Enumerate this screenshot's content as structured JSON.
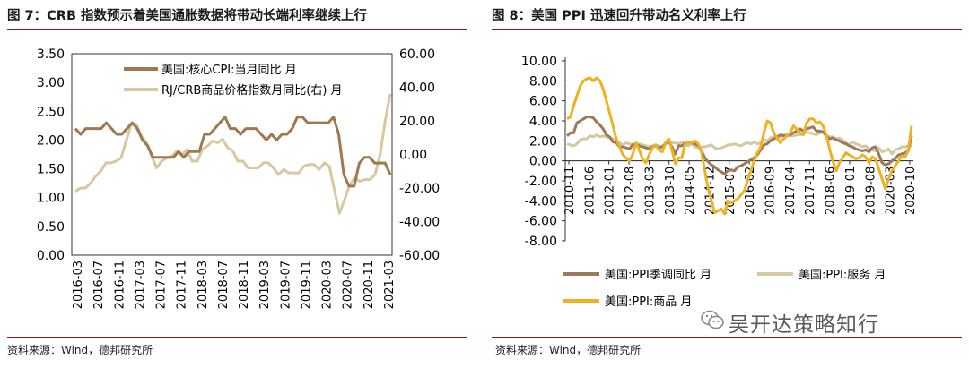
{
  "charts": [
    {
      "title": "图 7：CRB 指数预示着美国通胀数据将带动长端利率继续上行",
      "source": "资料来源：Wind，德邦研究所"
    },
    {
      "title": "图 8：美国 PPI 迅速回升带动名义利率上行",
      "source": "资料来源：Wind，德邦研究所"
    }
  ],
  "watermark": {
    "text": "吴开达策略知行"
  },
  "chart_data": [
    {
      "type": "line",
      "title": "图 7：CRB 指数预示着美国通胀数据将带动长端利率继续上行",
      "x_tick_labels": [
        "2016-03",
        "2016-07",
        "2016-11",
        "2017-03",
        "2017-07",
        "2017-11",
        "2018-03",
        "2018-07",
        "2018-11",
        "2019-03",
        "2019-07",
        "2019-11",
        "2020-03",
        "2020-07",
        "2020-11",
        "2021-03"
      ],
      "y_left": {
        "lim": [
          0,
          3.5
        ],
        "ticks": [
          "0.00",
          "0.50",
          "1.00",
          "1.50",
          "2.00",
          "2.50",
          "3.00",
          "3.50"
        ]
      },
      "y_right": {
        "lim": [
          -60,
          60
        ],
        "ticks": [
          "-60.00",
          "-40.00",
          "-20.00",
          "0.00",
          "20.00",
          "40.00",
          "60.00"
        ]
      },
      "series": [
        {
          "name": "美国:核心CPI:当月同比 月",
          "axis": "left",
          "color": "#a07850",
          "values": [
            2.2,
            2.1,
            2.2,
            2.2,
            2.2,
            2.2,
            2.3,
            2.2,
            2.1,
            2.1,
            2.2,
            2.3,
            2.2,
            2.0,
            1.9,
            1.7,
            1.7,
            1.7,
            1.7,
            1.7,
            1.8,
            1.7,
            1.8,
            1.8,
            1.8,
            2.1,
            2.1,
            2.2,
            2.3,
            2.4,
            2.2,
            2.2,
            2.1,
            2.2,
            2.2,
            2.2,
            2.1,
            2.0,
            2.1,
            2.0,
            2.1,
            2.1,
            2.2,
            2.4,
            2.4,
            2.3,
            2.3,
            2.3,
            2.3,
            2.3,
            2.4,
            2.1,
            1.4,
            1.2,
            1.2,
            1.6,
            1.7,
            1.7,
            1.6,
            1.6,
            1.6,
            1.4
          ]
        },
        {
          "name": "RJ/CRB商品价格指数月同比(右) 月",
          "axis": "right",
          "color": "#d8c8a0",
          "values": [
            -22,
            -20,
            -20,
            -17,
            -13,
            -10,
            -5,
            -5,
            -4,
            -2,
            8,
            18,
            18,
            11,
            7,
            -1,
            -8,
            -4,
            -2,
            -1,
            2,
            0,
            3,
            -4,
            -4,
            3,
            5,
            8,
            7,
            9,
            4,
            2,
            -4,
            -4,
            -8,
            -8,
            -8,
            -5,
            -5,
            -8,
            -12,
            -9,
            -11,
            -11,
            -11,
            -7,
            -6,
            -6,
            -9,
            -5,
            -7,
            -21,
            -35,
            -27,
            -18,
            -14,
            -16,
            -15,
            -15,
            -12,
            0,
            20,
            36
          ]
        }
      ]
    },
    {
      "type": "line",
      "title": "图 8：美国 PPI 迅速回升带动名义利率上行",
      "x_tick_labels": [
        "2010-11",
        "2011-06",
        "2012-01",
        "2012-08",
        "2013-03",
        "2013-10",
        "2014-05",
        "2014-12",
        "2015-07",
        "2016-02",
        "2016-09",
        "2017-04",
        "2017-11",
        "2018-06",
        "2019-01",
        "2019-08",
        "2020-03",
        "2020-10"
      ],
      "y": {
        "lim": [
          -8,
          10
        ],
        "ticks": [
          "10.00",
          "8.00",
          "6.00",
          "4.00",
          "2.00",
          "0.00",
          "-2.00",
          "-4.00",
          "-6.00",
          "-8.00"
        ]
      },
      "series": [
        {
          "name": "美国:PPI季调同比 月",
          "color": "#9c7a58",
          "values": [
            2.5,
            2.8,
            2.8,
            3.8,
            4.0,
            4.2,
            4.4,
            4.4,
            4.3,
            3.9,
            3.6,
            3.2,
            2.6,
            2.4,
            1.9,
            1.8,
            1.4,
            1.4,
            1.3,
            1.2,
            1.6,
            1.7,
            1.5,
            1.4,
            1.3,
            1.2,
            1.4,
            1.5,
            1.3,
            1.4,
            1.7,
            1.9,
            1.4,
            0.7,
            1.5,
            1.5,
            1.8,
            1.8,
            1.8,
            1.7,
            1.5,
            1.0,
            0.3,
            -0.1,
            -0.4,
            -0.6,
            -0.9,
            -1.1,
            -1.3,
            -1.0,
            -0.9,
            -1.0,
            -0.6,
            -0.5,
            -0.3,
            -0.1,
            0.1,
            0.3,
            0.6,
            1.1,
            1.6,
            1.7,
            2.0,
            2.2,
            2.4,
            2.6,
            2.5,
            2.5,
            2.6,
            2.8,
            3.0,
            3.2,
            3.0,
            3.2,
            3.3,
            3.4,
            3.0,
            3.0,
            2.9,
            2.5,
            2.2,
            2.3,
            2.1,
            2.0,
            1.8,
            1.7,
            1.5,
            1.4,
            1.2,
            1.1,
            1.0,
            1.1,
            0.9,
            1.3,
            1.4,
            0.7,
            -0.2,
            -0.4,
            -0.3,
            0.0,
            0.2,
            0.6,
            0.7,
            0.8,
            1.0,
            2.5
          ]
        },
        {
          "name": "美国:PPI:服务 月",
          "color": "#d4caa2",
          "values": [
            1.7,
            1.6,
            1.5,
            1.7,
            2.1,
            2.2,
            2.2,
            2.5,
            2.4,
            2.6,
            2.4,
            2.5,
            2.4,
            2.3,
            2.2,
            2.0,
            1.8,
            1.6,
            1.8,
            1.7,
            1.6,
            1.6,
            1.7,
            1.6,
            1.5,
            1.4,
            1.5,
            1.6,
            1.5,
            1.4,
            1.8,
            1.9,
            1.8,
            1.8,
            1.7,
            1.9,
            1.6,
            1.5,
            1.7,
            1.4,
            1.3,
            1.4,
            1.4,
            1.5,
            1.6,
            1.3,
            1.2,
            1.3,
            1.4,
            1.6,
            1.6,
            1.7,
            1.6,
            1.5,
            1.7,
            1.8,
            1.7,
            1.9,
            1.7,
            1.8,
            2.1,
            2.0,
            2.3,
            2.4,
            2.2,
            2.4,
            2.6,
            2.7,
            2.5,
            2.5,
            2.6,
            2.6,
            2.7,
            2.9,
            2.8,
            2.7,
            2.6,
            2.8,
            2.9,
            2.6,
            2.4,
            2.4,
            2.2,
            2.3,
            2.1,
            1.8,
            1.6,
            1.9,
            1.7,
            1.6,
            1.4,
            1.5,
            1.2,
            1.1,
            1.0,
            1.3,
            0.9,
            1.0,
            1.2,
            0.7,
            1.1,
            1.2,
            1.4,
            1.4,
            1.5,
            1.5
          ]
        },
        {
          "name": "美国:PPI:商品 月",
          "color": "#f0b020",
          "values": [
            4.2,
            4.4,
            5.5,
            6.5,
            7.5,
            8.0,
            8.2,
            8.3,
            8.0,
            8.3,
            8.0,
            7.2,
            6.0,
            4.8,
            3.5,
            2.2,
            1.4,
            0.6,
            0.3,
            0.0,
            0.6,
            1.8,
            1.1,
            0.2,
            -0.2,
            0.6,
            1.3,
            1.6,
            1.1,
            0.9,
            1.8,
            2.2,
            1.1,
            -0.3,
            0.3,
            0.3,
            1.8,
            1.8,
            1.8,
            2.0,
            1.7,
            0.8,
            -1.0,
            -2.8,
            -4.0,
            -5.2,
            -5.0,
            -4.8,
            -5.3,
            -4.0,
            -4.2,
            -4.0,
            -3.8,
            -3.4,
            -3.0,
            -2.0,
            -1.0,
            0.0,
            0.8,
            1.4,
            2.8,
            4.0,
            3.8,
            2.8,
            2.3,
            1.8,
            2.2,
            2.5,
            2.8,
            3.5,
            3.2,
            2.8,
            2.6,
            3.8,
            4.2,
            4.2,
            3.8,
            3.9,
            3.5,
            2.6,
            1.2,
            0.0,
            -1.0,
            -0.2,
            0.3,
            0.8,
            0.6,
            0.4,
            0.2,
            0.3,
            0.6,
            0.4,
            -0.2,
            0.4,
            0.2,
            -0.8,
            -1.8,
            -2.8,
            -1.8,
            -1.0,
            -0.5,
            0.0,
            0.5,
            0.4,
            1.0,
            3.5
          ]
        }
      ]
    }
  ]
}
